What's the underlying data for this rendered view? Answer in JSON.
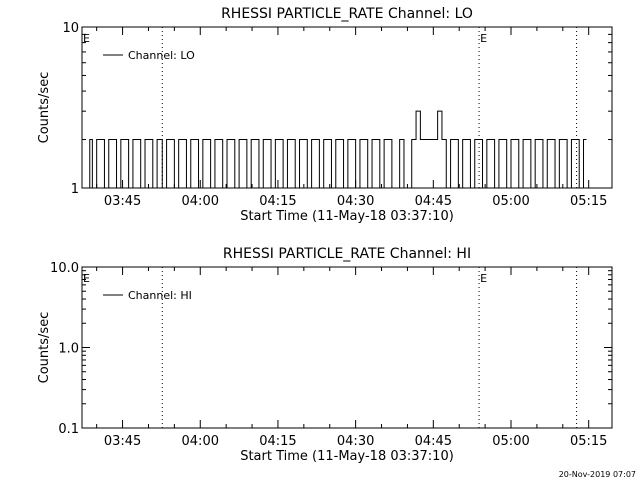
{
  "footer": {
    "timestamp": "20-Nov-2019 07:07"
  },
  "chart_data": [
    {
      "type": "line",
      "title": "RHESSI PARTICLE_RATE Channel: LO",
      "xlabel": "Start Time (11-May-18 03:37:10)",
      "ylabel": "Counts/sec",
      "yscale": "log",
      "ylim": [
        1,
        10
      ],
      "xlim": [
        "03:37:10",
        "05:19:30"
      ],
      "ytick_labels": [
        "1",
        "10"
      ],
      "xtick_labels": [
        "03:45",
        "04:00",
        "04:15",
        "04:30",
        "04:45",
        "05:00",
        "05:15"
      ],
      "markers": [
        {
          "label": "E",
          "time": "03:37:10",
          "line": false
        },
        {
          "label": "",
          "time": "03:52:40",
          "line": true
        },
        {
          "label": "E",
          "time": "04:53:50",
          "line": true
        },
        {
          "label": "",
          "time": "05:12:40",
          "line": true
        }
      ],
      "legend": {
        "placement": "top-left",
        "entries": [
          "Channel: LO"
        ]
      },
      "series": [
        {
          "name": "Channel: LO",
          "levels_description": "counts/sec sampled as step values",
          "x": [
            "03:37:10",
            "03:38:40",
            "03:39:10",
            "03:40:00",
            "03:41:30",
            "03:42:20",
            "03:43:50",
            "03:44:40",
            "03:46:10",
            "03:47:00",
            "03:48:30",
            "03:49:20",
            "03:50:50",
            "03:51:40",
            "03:52:40",
            "03:53:30",
            "03:55:00",
            "03:55:50",
            "03:57:20",
            "03:58:10",
            "03:59:40",
            "04:00:30",
            "04:02:00",
            "04:02:50",
            "04:04:20",
            "04:05:10",
            "04:06:40",
            "04:07:30",
            "04:09:00",
            "04:09:50",
            "04:11:20",
            "04:12:10",
            "04:13:40",
            "04:14:30",
            "04:16:00",
            "04:16:50",
            "04:18:20",
            "04:19:10",
            "04:20:40",
            "04:21:30",
            "04:23:00",
            "04:23:50",
            "04:25:20",
            "04:26:10",
            "04:27:40",
            "04:28:30",
            "04:30:00",
            "04:30:50",
            "04:32:20",
            "04:33:10",
            "04:34:40",
            "04:35:30",
            "04:37:00",
            "04:38:30",
            "04:39:20",
            "04:40:50",
            "04:41:40",
            "04:42:30",
            "04:43:20",
            "04:44:10",
            "04:45:00",
            "04:45:50",
            "04:46:40",
            "04:47:30",
            "04:48:20",
            "04:49:50",
            "04:50:40",
            "04:52:10",
            "04:53:00",
            "04:54:30",
            "04:55:20",
            "04:56:50",
            "04:57:40",
            "04:59:10",
            "05:00:00",
            "05:01:30",
            "05:02:20",
            "05:03:50",
            "05:04:40",
            "05:06:10",
            "05:07:00",
            "05:08:30",
            "05:09:20",
            "05:10:50",
            "05:11:40",
            "05:13:10",
            "05:14:00"
          ],
          "values": [
            1,
            2,
            1,
            2,
            1,
            2,
            1,
            2,
            1,
            2,
            1,
            2,
            1,
            2,
            1,
            2,
            1,
            2,
            1,
            2,
            1,
            2,
            1,
            2,
            1,
            2,
            1,
            2,
            1,
            2,
            1,
            2,
            1,
            2,
            1,
            2,
            1,
            2,
            1,
            2,
            1,
            2,
            1,
            2,
            1,
            2,
            1,
            2,
            1,
            2,
            1,
            2,
            1,
            2,
            1,
            2,
            3,
            2,
            2,
            2,
            2,
            3,
            2,
            1,
            2,
            1,
            2,
            1,
            2,
            1,
            2,
            1,
            2,
            1,
            2,
            1,
            2,
            1,
            2,
            1,
            2,
            1,
            2,
            1,
            2,
            1,
            2
          ]
        }
      ]
    },
    {
      "type": "line",
      "title": "RHESSI PARTICLE_RATE Channel: HI",
      "xlabel": "Start Time (11-May-18 03:37:10)",
      "ylabel": "Counts/sec",
      "yscale": "log",
      "ylim": [
        0.1,
        10
      ],
      "xlim": [
        "03:37:10",
        "05:19:30"
      ],
      "ytick_labels": [
        "0.1",
        "1.0",
        "10.0"
      ],
      "xtick_labels": [
        "03:45",
        "04:00",
        "04:15",
        "04:30",
        "04:45",
        "05:00",
        "05:15"
      ],
      "markers": [
        {
          "label": "E",
          "time": "03:37:10",
          "line": false
        },
        {
          "label": "",
          "time": "03:52:40",
          "line": true
        },
        {
          "label": "E",
          "time": "04:53:50",
          "line": true
        },
        {
          "label": "",
          "time": "05:12:40",
          "line": true
        }
      ],
      "legend": {
        "placement": "top-left",
        "entries": [
          "Channel: HI"
        ]
      },
      "series": [
        {
          "name": "Channel: HI",
          "x": [],
          "values": []
        }
      ]
    }
  ]
}
